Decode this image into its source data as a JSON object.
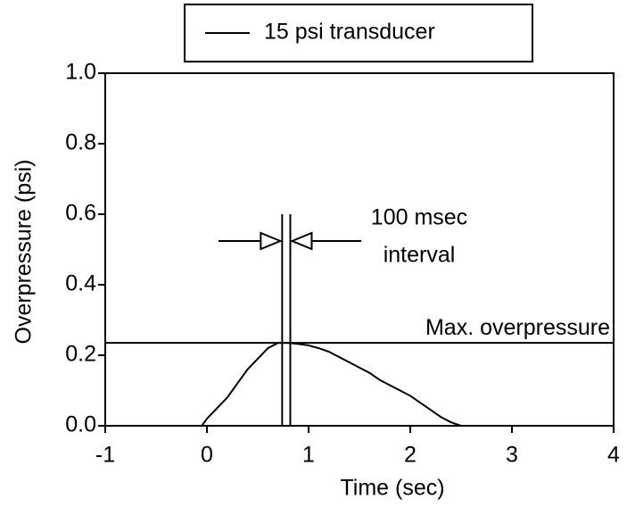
{
  "chart_data": {
    "type": "line",
    "x_label": "Time (sec)",
    "y_label": "Overpressure (psi)",
    "x": [
      -1,
      -0.5,
      -0.05,
      0,
      0.1,
      0.2,
      0.3,
      0.4,
      0.5,
      0.6,
      0.7,
      0.8,
      0.9,
      1.0,
      1.1,
      1.2,
      1.3,
      1.4,
      1.5,
      1.6,
      1.7,
      1.8,
      1.9,
      2.0,
      2.1,
      2.2,
      2.3,
      2.4,
      2.5,
      3,
      3.5,
      4
    ],
    "series": [
      {
        "name": "15 psi transducer",
        "color": "#000000",
        "values": [
          0,
          0,
          0,
          0.02,
          0.05,
          0.08,
          0.12,
          0.16,
          0.19,
          0.22,
          0.235,
          0.235,
          0.232,
          0.228,
          0.22,
          0.21,
          0.195,
          0.18,
          0.165,
          0.15,
          0.13,
          0.115,
          0.1,
          0.085,
          0.065,
          0.045,
          0.025,
          0.01,
          0,
          0,
          0,
          0
        ]
      }
    ],
    "xlim": [
      -1,
      4
    ],
    "ylim": [
      0,
      1
    ],
    "xticks": [
      -1,
      0,
      1,
      2,
      3,
      4
    ],
    "yticks": [
      {
        "value": 0,
        "label": "0.0"
      },
      0.2,
      0.4,
      0.6,
      0.8,
      {
        "value": 1,
        "label": "1.0"
      }
    ],
    "max_line": {
      "label": "Max. overpressure",
      "value": 0.235
    },
    "interval": {
      "label": [
        "100 msec",
        "interval"
      ],
      "x": [
        0.74,
        0.82
      ],
      "top": 0.6
    }
  }
}
